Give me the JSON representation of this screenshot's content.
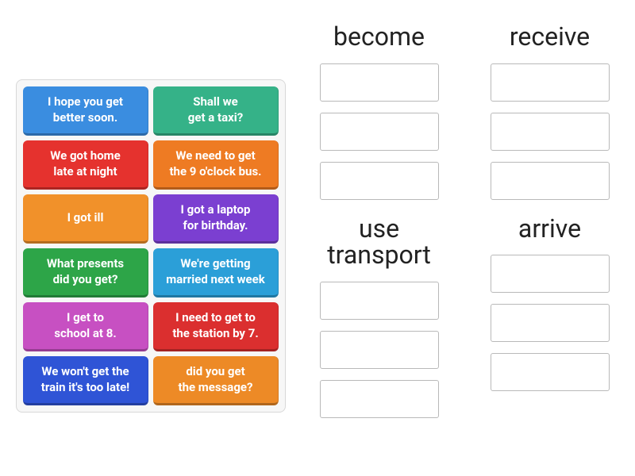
{
  "cards": [
    {
      "line1": "I hope you get",
      "line2": "better soon.",
      "bg": "#3a8de0"
    },
    {
      "line1": "Shall we",
      "line2": "get a taxi?",
      "bg": "#35b288"
    },
    {
      "line1": "We got home",
      "line2": "late at night",
      "bg": "#e5322e"
    },
    {
      "line1": "We need to get",
      "line2": "the 9 o'clock bus.",
      "bg": "#ee7b23"
    },
    {
      "line1": "I got ill",
      "line2": "",
      "bg": "#f1912a"
    },
    {
      "line1": "I got a laptop",
      "line2": "for birthday.",
      "bg": "#7b3fd1"
    },
    {
      "line1": "What presents",
      "line2": "did you get?",
      "bg": "#2da548"
    },
    {
      "line1": "We're getting",
      "line2": "married next week",
      "bg": "#2b9fd8"
    },
    {
      "line1": "I get to",
      "line2": "school at 8.",
      "bg": "#c750c2"
    },
    {
      "line1": "I need to get to",
      "line2": "the station by 7.",
      "bg": "#db2f2f"
    },
    {
      "line1": "We won't get the",
      "line2": "train it's too late!",
      "bg": "#2f54d6"
    },
    {
      "line1": "did you get",
      "line2": "the message?",
      "bg": "#ed8a26"
    }
  ],
  "categories_top": [
    {
      "title": "become"
    },
    {
      "title": "receive"
    }
  ],
  "categories_bottom": [
    {
      "title_line1": "use",
      "title_line2": "transport"
    },
    {
      "title_line1": "arrive",
      "title_line2": ""
    }
  ],
  "slots_per_category": 3,
  "style": {
    "card_font_size": 15,
    "card_font_weight": 700,
    "title_font_size": 32,
    "title_color": "#222222",
    "panel_bg": "#f7f7f7",
    "panel_border": "#d8d8d8",
    "slot_border": "#b9b9b9",
    "slot_bg": "#ffffff",
    "card_text_color": "#ffffff"
  }
}
